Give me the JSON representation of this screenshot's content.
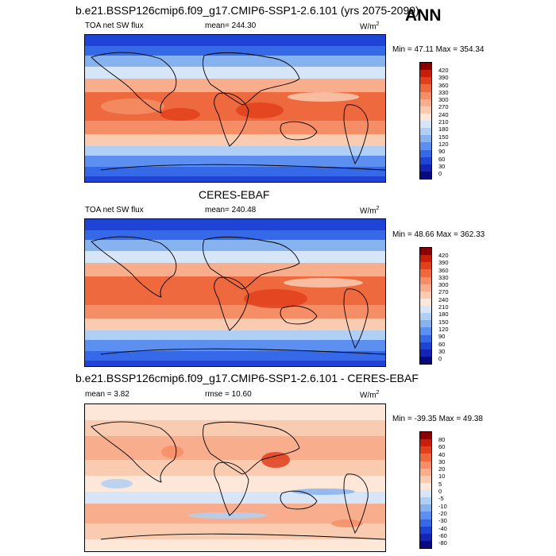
{
  "season": "ANN",
  "panels": [
    {
      "title": "b.e21.BSSP126cmip6.f09_g17.CMIP6-SSP1-2.6.101 (yrs 2075-2099)",
      "variable": "TOA net SW flux",
      "stat": "mean=  244.30",
      "units_base": "W/m",
      "units_exp": "2",
      "minmax": "Min =  47.11 Max = 354.34",
      "levels": [
        "420",
        "390",
        "360",
        "330",
        "300",
        "270",
        "240",
        "210",
        "180",
        "150",
        "120",
        "90",
        "60",
        "30",
        "0"
      ],
      "colors": [
        "#8b0000",
        "#c81e0a",
        "#e0401c",
        "#ee6a3e",
        "#f58e66",
        "#f8ae8c",
        "#f9cbb1",
        "#fce7d8",
        "#d6e5f7",
        "#b0cff5",
        "#86b2f0",
        "#5c8ff0",
        "#3569e8",
        "#1e43d5",
        "#1424b5",
        "#0a0a80"
      ]
    },
    {
      "title": "CERES-EBAF",
      "variable": "TOA net SW flux",
      "stat": "mean=  240.48",
      "units_base": "W/m",
      "units_exp": "2",
      "minmax": "Min =  48.66 Max = 362.33",
      "levels": [
        "420",
        "390",
        "360",
        "330",
        "300",
        "270",
        "240",
        "210",
        "180",
        "150",
        "120",
        "90",
        "60",
        "30",
        "0"
      ],
      "colors": [
        "#8b0000",
        "#c81e0a",
        "#e0401c",
        "#ee6a3e",
        "#f58e66",
        "#f8ae8c",
        "#f9cbb1",
        "#fce7d8",
        "#d6e5f7",
        "#b0cff5",
        "#86b2f0",
        "#5c8ff0",
        "#3569e8",
        "#1e43d5",
        "#1424b5",
        "#0a0a80"
      ]
    },
    {
      "title": "b.e21.BSSP126cmip6.f09_g17.CMIP6-SSP1-2.6.101 - CERES-EBAF",
      "stat_mean": "mean =   3.82",
      "stat_rmse": "rmse =  10.60",
      "units_base": "W/m",
      "units_exp": "2",
      "minmax": "Min = -39.35 Max =  49.38",
      "levels": [
        "80",
        "60",
        "40",
        "30",
        "20",
        "10",
        "5",
        "0",
        "-5",
        "-10",
        "-20",
        "-30",
        "-40",
        "-60",
        "-80"
      ],
      "colors": [
        "#8b0000",
        "#c81e0a",
        "#e0401c",
        "#ee6a3e",
        "#f58e66",
        "#f8ae8c",
        "#f9cbb1",
        "#fce7d8",
        "#d6e5f7",
        "#b0cff5",
        "#86b2f0",
        "#5c8ff0",
        "#3569e8",
        "#1e43d5",
        "#1424b5",
        "#0a0a80"
      ]
    }
  ]
}
